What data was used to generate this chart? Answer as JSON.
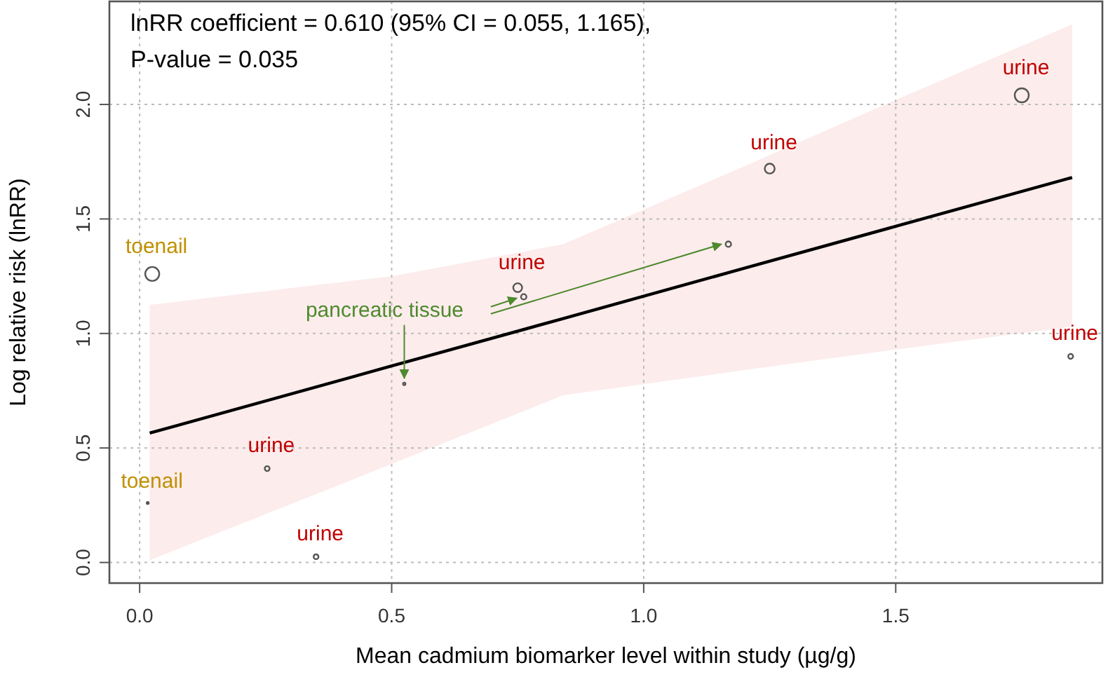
{
  "chart_data": {
    "type": "bubble",
    "xlabel": "Mean cadmium biomarker level within study (µg/g)",
    "ylabel": "Log relative risk (lnRR)",
    "xlim": [
      -0.06,
      1.91
    ],
    "ylim": [
      -0.09,
      2.45
    ],
    "xticks": [
      {
        "value": 0,
        "label": "0.0"
      },
      {
        "value": 0.5,
        "label": "0.5"
      },
      {
        "value": 1,
        "label": "1.0"
      },
      {
        "value": 1.5,
        "label": "1.5"
      }
    ],
    "yticks": [
      {
        "value": 0,
        "label": "0.0"
      },
      {
        "value": 0.5,
        "label": "0.5"
      },
      {
        "value": 1,
        "label": "1.0"
      },
      {
        "value": 1.5,
        "label": "1.5"
      },
      {
        "value": 2,
        "label": "2.0"
      }
    ],
    "grid": true,
    "marker": "circle",
    "series": [
      {
        "type": "line",
        "marker": "none",
        "color": "#000000",
        "x": [
          0.02,
          0.5,
          0.84,
          1.2,
          1.5,
          1.85
        ],
        "values": [
          0.565,
          0.858,
          1.065,
          1.285,
          1.468,
          1.681
        ],
        "lower": [
          0.01,
          0.43,
          0.73,
          0.84,
          0.93,
          1.03
        ],
        "upper": [
          1.125,
          1.25,
          1.39,
          1.73,
          2.02,
          2.35
        ]
      },
      {
        "color": "#555555",
        "x": [
          0.253,
          0.35,
          0.75,
          1.25,
          1.75,
          1.847
        ],
        "values": [
          0.41,
          0.025,
          1.2,
          1.72,
          2.04,
          0.9
        ],
        "sizes": [
          0.12,
          0.12,
          0.4,
          0.5,
          1,
          0.12
        ]
      },
      {
        "color": "#555555",
        "x": [
          0.025,
          0.016
        ],
        "values": [
          1.26,
          0.26
        ],
        "sizes": [
          1,
          0.02
        ]
      },
      {
        "color": "#555555",
        "x": [
          0.525,
          0.762,
          1.168
        ],
        "values": [
          0.78,
          1.16,
          1.39
        ],
        "sizes": [
          0.03,
          0.15,
          0.15
        ]
      }
    ],
    "annotations": [
      "lnRR coefficient = 0.610 (95% CI = 0.055, 1.165),",
      "P-value = 0.035",
      {
        "text": "toenail",
        "x": 0.025,
        "y": 1.26
      },
      {
        "text": "toenail",
        "x": 0.016,
        "y": 0.26
      },
      {
        "text": "urine",
        "x": 0.253,
        "y": 0.41
      },
      {
        "text": "urine",
        "x": 0.35,
        "y": 0.025
      },
      {
        "text": "urine",
        "x": 0.75,
        "y": 1.2
      },
      {
        "text": "pancreatic tissue",
        "x": 0.525,
        "y": 0.78
      },
      {
        "text": "urine",
        "x": 1.25,
        "y": 1.72
      },
      {
        "text": "urine",
        "x": 1.75,
        "y": 2.04
      },
      {
        "text": "urine",
        "x": 1.847,
        "y": 0.9
      }
    ]
  }
}
